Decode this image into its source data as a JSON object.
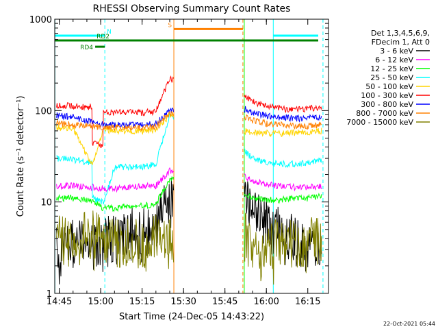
{
  "chart_data": {
    "type": "line",
    "title": "RHESSI Observing Summary Count Rates",
    "xlabel": "Start Time (24-Dec-05 14:43:22)",
    "ylabel": "Count Rate (s⁻¹ detector⁻¹)",
    "yscale": "log",
    "ylim": [
      1,
      1000
    ],
    "xlim": [
      "14:43:22",
      "16:22:30"
    ],
    "x_ticks": [
      "14:45",
      "15:00",
      "15:15",
      "15:30",
      "15:45",
      "16:00",
      "16:15"
    ],
    "y_ticks": [
      "1",
      "10",
      "100",
      "1000"
    ],
    "grid": false,
    "legend_position": "right",
    "legend_header": [
      "Det 1,3,4,5,6,9,",
      "FDecim 1, Att 0"
    ],
    "timestamp": "22-Oct-2021 05:44",
    "series": [
      {
        "name": "3 - 6 keV",
        "color": "#000000",
        "x": [
          "14:44",
          "14:50",
          "14:57",
          "15:01",
          "15:05",
          "15:10",
          "15:15",
          "15:20",
          "15:25",
          "15:52",
          "15:55",
          "16:00",
          "16:05",
          "16:10",
          "16:15",
          "16:20"
        ],
        "y": [
          3,
          3.5,
          3.2,
          3.5,
          4,
          4.5,
          4.5,
          5,
          12,
          13,
          9,
          6,
          4.5,
          3.8,
          3.5,
          4
        ]
      },
      {
        "name": "6 - 12 keV",
        "color": "#ff00ff",
        "x": [
          "14:44",
          "14:50",
          "14:57",
          "15:01",
          "15:05",
          "15:10",
          "15:15",
          "15:20",
          "15:25",
          "15:52",
          "15:55",
          "16:00",
          "16:05",
          "16:10",
          "16:15",
          "16:20"
        ],
        "y": [
          15,
          15,
          14.5,
          14,
          14,
          14.5,
          15,
          15,
          22,
          19,
          17,
          15.5,
          15,
          14.5,
          14.5,
          15
        ]
      },
      {
        "name": "12 - 25 keV",
        "color": "#00ff00",
        "x": [
          "14:44",
          "14:50",
          "14:57",
          "15:01",
          "15:05",
          "15:10",
          "15:15",
          "15:20",
          "15:25",
          "15:52",
          "15:55",
          "16:00",
          "16:05",
          "16:10",
          "16:15",
          "16:20"
        ],
        "y": [
          11,
          11,
          10.5,
          8.5,
          8.5,
          9,
          9,
          9.5,
          18,
          12,
          11,
          10.5,
          10.5,
          11,
          11,
          11.5
        ]
      },
      {
        "name": "25 - 50 keV",
        "color": "#00ffff",
        "x": [
          "14:44",
          "14:50",
          "14:56",
          "14:57",
          "15:01",
          "15:05",
          "15:10",
          "15:15",
          "15:20",
          "15:25",
          "15:52",
          "15:55",
          "16:00",
          "16:05",
          "16:10",
          "16:15",
          "16:20"
        ],
        "y": [
          30,
          29,
          27,
          11,
          10,
          24,
          24,
          24,
          26,
          90,
          36,
          30,
          27,
          26,
          26,
          27,
          28
        ]
      },
      {
        "name": "50 - 100 keV",
        "color": "#ffd400",
        "x": [
          "14:44",
          "14:50",
          "14:57",
          "15:01",
          "15:05",
          "15:10",
          "15:15",
          "15:20",
          "15:25",
          "15:52",
          "15:55",
          "16:00",
          "16:05",
          "16:10",
          "16:15",
          "16:20"
        ],
        "y": [
          65,
          64,
          25,
          62,
          60,
          60,
          60,
          61,
          90,
          60,
          58,
          57,
          56,
          57,
          58,
          60
        ]
      },
      {
        "name": "100 - 300 keV",
        "color": "#ff0000",
        "x": [
          "14:44",
          "14:50",
          "14:56",
          "14:57",
          "15:00",
          "15:01",
          "15:05",
          "15:10",
          "15:15",
          "15:20",
          "15:25",
          "15:52",
          "15:55",
          "16:00",
          "16:05",
          "16:10",
          "16:15",
          "16:20"
        ],
        "y": [
          115,
          112,
          110,
          44,
          41,
          98,
          95,
          96,
          95,
          98,
          220,
          145,
          125,
          112,
          105,
          102,
          104,
          110
        ]
      },
      {
        "name": "300 - 800 keV",
        "color": "#0000ff",
        "x": [
          "14:44",
          "14:50",
          "14:57",
          "15:01",
          "15:05",
          "15:10",
          "15:15",
          "15:20",
          "15:25",
          "15:52",
          "15:55",
          "16:00",
          "16:05",
          "16:10",
          "16:15",
          "16:20"
        ],
        "y": [
          88,
          85,
          75,
          70,
          70,
          70,
          70,
          72,
          100,
          105,
          95,
          88,
          84,
          82,
          82,
          85
        ]
      },
      {
        "name": "800 - 7000 keV",
        "color": "#ff8000",
        "x": [
          "14:44",
          "14:50",
          "14:57",
          "15:01",
          "15:05",
          "15:10",
          "15:15",
          "15:20",
          "15:25",
          "15:52",
          "15:55",
          "16:00",
          "16:05",
          "16:10",
          "16:15",
          "16:20"
        ],
        "y": [
          72,
          70,
          67,
          66,
          65,
          65,
          65,
          67,
          95,
          85,
          78,
          72,
          70,
          68,
          68,
          70
        ]
      },
      {
        "name": "7000 - 15000 keV",
        "color": "#808000",
        "x": [
          "14:44",
          "14:50",
          "14:57",
          "15:01",
          "15:05",
          "15:10",
          "15:15",
          "15:20",
          "15:25",
          "15:52",
          "15:55",
          "16:00",
          "16:05",
          "16:10",
          "16:15",
          "16:20"
        ],
        "y": [
          4,
          3.5,
          4.5,
          3.5,
          3.5,
          3.5,
          3.5,
          4,
          4,
          4.5,
          3,
          3.5,
          3.5,
          3.5,
          3.8,
          4
        ]
      }
    ],
    "vertical_lines": [
      {
        "x": "14:43:25",
        "color": "#00ffff",
        "style": "solid"
      },
      {
        "x": "15:01:30",
        "color": "#00ffff",
        "style": "dashed"
      },
      {
        "x": "15:26:30",
        "color": "#ff8000",
        "style": "solid"
      },
      {
        "x": "15:51:30",
        "color": "#ff8000",
        "style": "dashed"
      },
      {
        "x": "15:52:00",
        "color": "#00ff00",
        "style": "solid"
      },
      {
        "x": "16:02:30",
        "color": "#00ffff",
        "style": "solid"
      },
      {
        "x": "16:20:30",
        "color": "#00ffff",
        "style": "dashed"
      }
    ],
    "flag_bars": [
      {
        "label": "N",
        "color": "#00ffff",
        "y": 660,
        "segments": [
          [
            "14:43:22",
            "15:01:30"
          ],
          [
            "16:02:30",
            "16:22:00"
          ]
        ]
      },
      {
        "label": "RD2",
        "color": "#008000",
        "y": 585,
        "segments": [
          [
            "14:43:22",
            "16:22:00"
          ]
        ]
      },
      {
        "label": "RD4",
        "color": "#008000",
        "y": 500,
        "segments": [
          [
            "14:58:00",
            "15:01:30"
          ]
        ]
      },
      {
        "label": "S",
        "color": "#ff8000",
        "y": 780,
        "segments": [
          [
            "15:26:30",
            "15:51:30"
          ]
        ]
      }
    ]
  }
}
